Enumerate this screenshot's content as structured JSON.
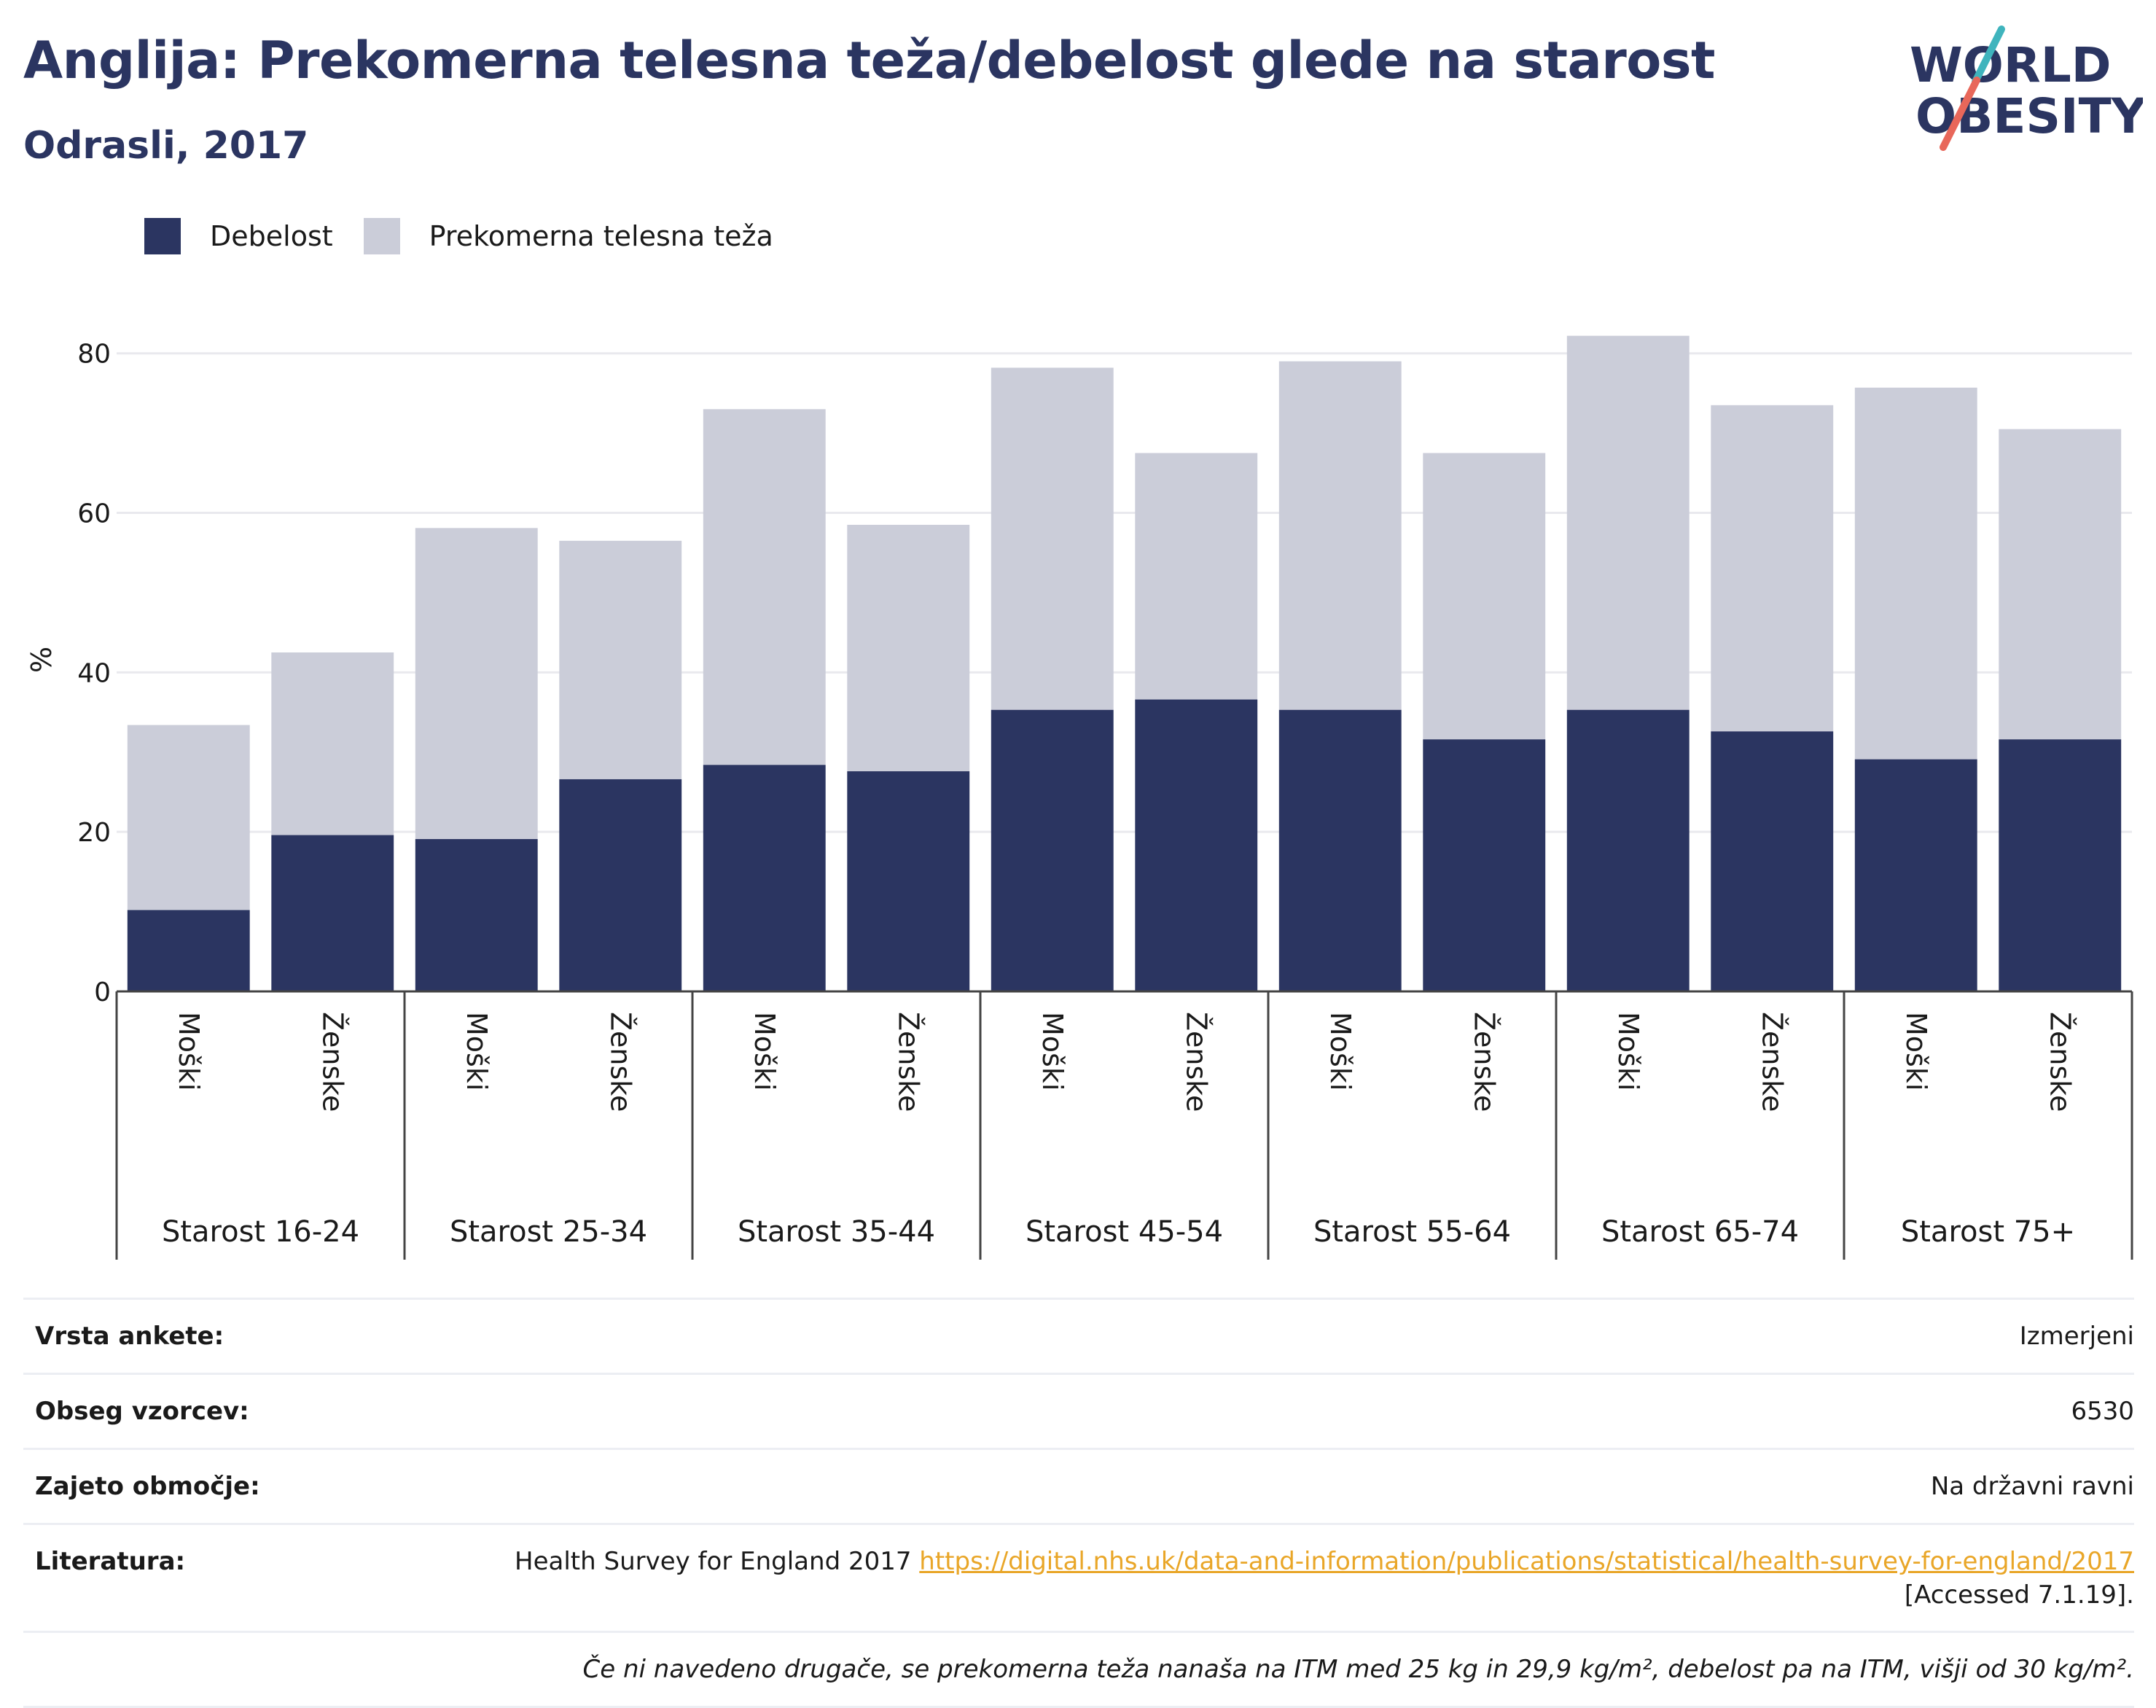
{
  "title": "Anglija: Prekomerna telesna teža/debelost glede na starost",
  "subtitle": "Odrasli, 2017",
  "logo": {
    "line1": "WORLD",
    "line2": "OBESITY",
    "accent_colors": [
      "#3fb4bd",
      "#e8675a"
    ],
    "text_color": "#2b3561"
  },
  "colors": {
    "obesity": "#2b3561",
    "overweight": "#cbcdd9",
    "grid": "#e9e9ee",
    "axis": "#444444"
  },
  "chart_data": {
    "type": "bar",
    "stacked": true,
    "ylabel": "%",
    "ylim": [
      0,
      85
    ],
    "yticks": [
      0,
      20,
      40,
      60,
      80
    ],
    "grid": true,
    "legend_position": "top-left",
    "groups": [
      "Starost 16-24",
      "Starost 25-34",
      "Starost 35-44",
      "Starost 45-54",
      "Starost 55-64",
      "Starost 65-74",
      "Starost 75+"
    ],
    "categories": [
      "Moški",
      "Ženske",
      "Moški",
      "Ženske",
      "Moški",
      "Ženske",
      "Moški",
      "Ženske",
      "Moški",
      "Ženske",
      "Moški",
      "Ženske",
      "Moški",
      "Ženske"
    ],
    "series": [
      {
        "name": "Debelost",
        "values": [
          10.2,
          19.6,
          19.1,
          26.6,
          28.4,
          27.6,
          35.3,
          36.6,
          35.3,
          31.6,
          35.3,
          32.6,
          29.1,
          31.6
        ]
      },
      {
        "name": "Prekomerna telesna teža",
        "values": [
          23.2,
          22.9,
          39.0,
          29.9,
          44.6,
          30.9,
          42.9,
          30.9,
          43.7,
          35.9,
          46.9,
          40.9,
          46.6,
          38.9
        ]
      }
    ]
  },
  "info": {
    "survey_type": {
      "label": "Vrsta ankete:",
      "value": "Izmerjeni"
    },
    "sample_size": {
      "label": "Obseg vzorcev:",
      "value": "6530"
    },
    "coverage": {
      "label": "Zajeto območje:",
      "value": "Na državni ravni"
    },
    "literature": {
      "label": "Literatura:",
      "text": "Health Survey for England 2017",
      "link": "https://digital.nhs.uk/data-and-information/publications/statistical/health-survey-for-england/2017",
      "accessed": "[Accessed 7.1.19]."
    },
    "footnote": "Če ni navedeno drugače, se prekomerna teža nanaša na ITM med 25 kg in 29,9 kg/m², debelost pa na ITM, višji od 30 kg/m²."
  }
}
